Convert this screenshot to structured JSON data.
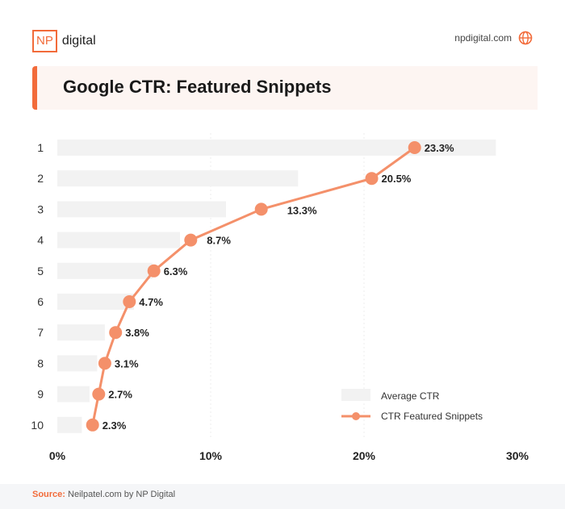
{
  "header": {
    "logo_np": "NP",
    "logo_text": "digital",
    "site": "npdigital.com"
  },
  "chart_data": {
    "type": "bar+line",
    "title": "Google CTR: Featured Snippets",
    "categories": [
      "1",
      "2",
      "3",
      "4",
      "5",
      "6",
      "7",
      "8",
      "9",
      "10"
    ],
    "series": [
      {
        "name": "Average CTR",
        "type": "bar",
        "values": [
          28.6,
          15.7,
          11.0,
          8.0,
          6.2,
          5.0,
          3.1,
          2.6,
          2.1,
          1.6
        ]
      },
      {
        "name": "CTR Featured Snippets",
        "type": "line",
        "values": [
          23.3,
          20.5,
          13.3,
          8.7,
          6.3,
          4.7,
          3.8,
          3.1,
          2.7,
          2.3
        ],
        "labels": [
          "23.3%",
          "20.5%",
          "13.3%",
          "8.7%",
          "6.3%",
          "4.7%",
          "3.8%",
          "3.1%",
          "2.7%",
          "2.3%"
        ]
      }
    ],
    "xlim": [
      0,
      30
    ],
    "xticks": [
      "0%",
      "10%",
      "20%",
      "30%"
    ],
    "legend": "bottom-right",
    "colors": {
      "bar": "#f2f2f2",
      "line": "#f4906a",
      "accent": "#f26b3a"
    }
  },
  "footer": {
    "source_label": "Source:",
    "source_text": "Neilpatel.com by NP Digital"
  }
}
